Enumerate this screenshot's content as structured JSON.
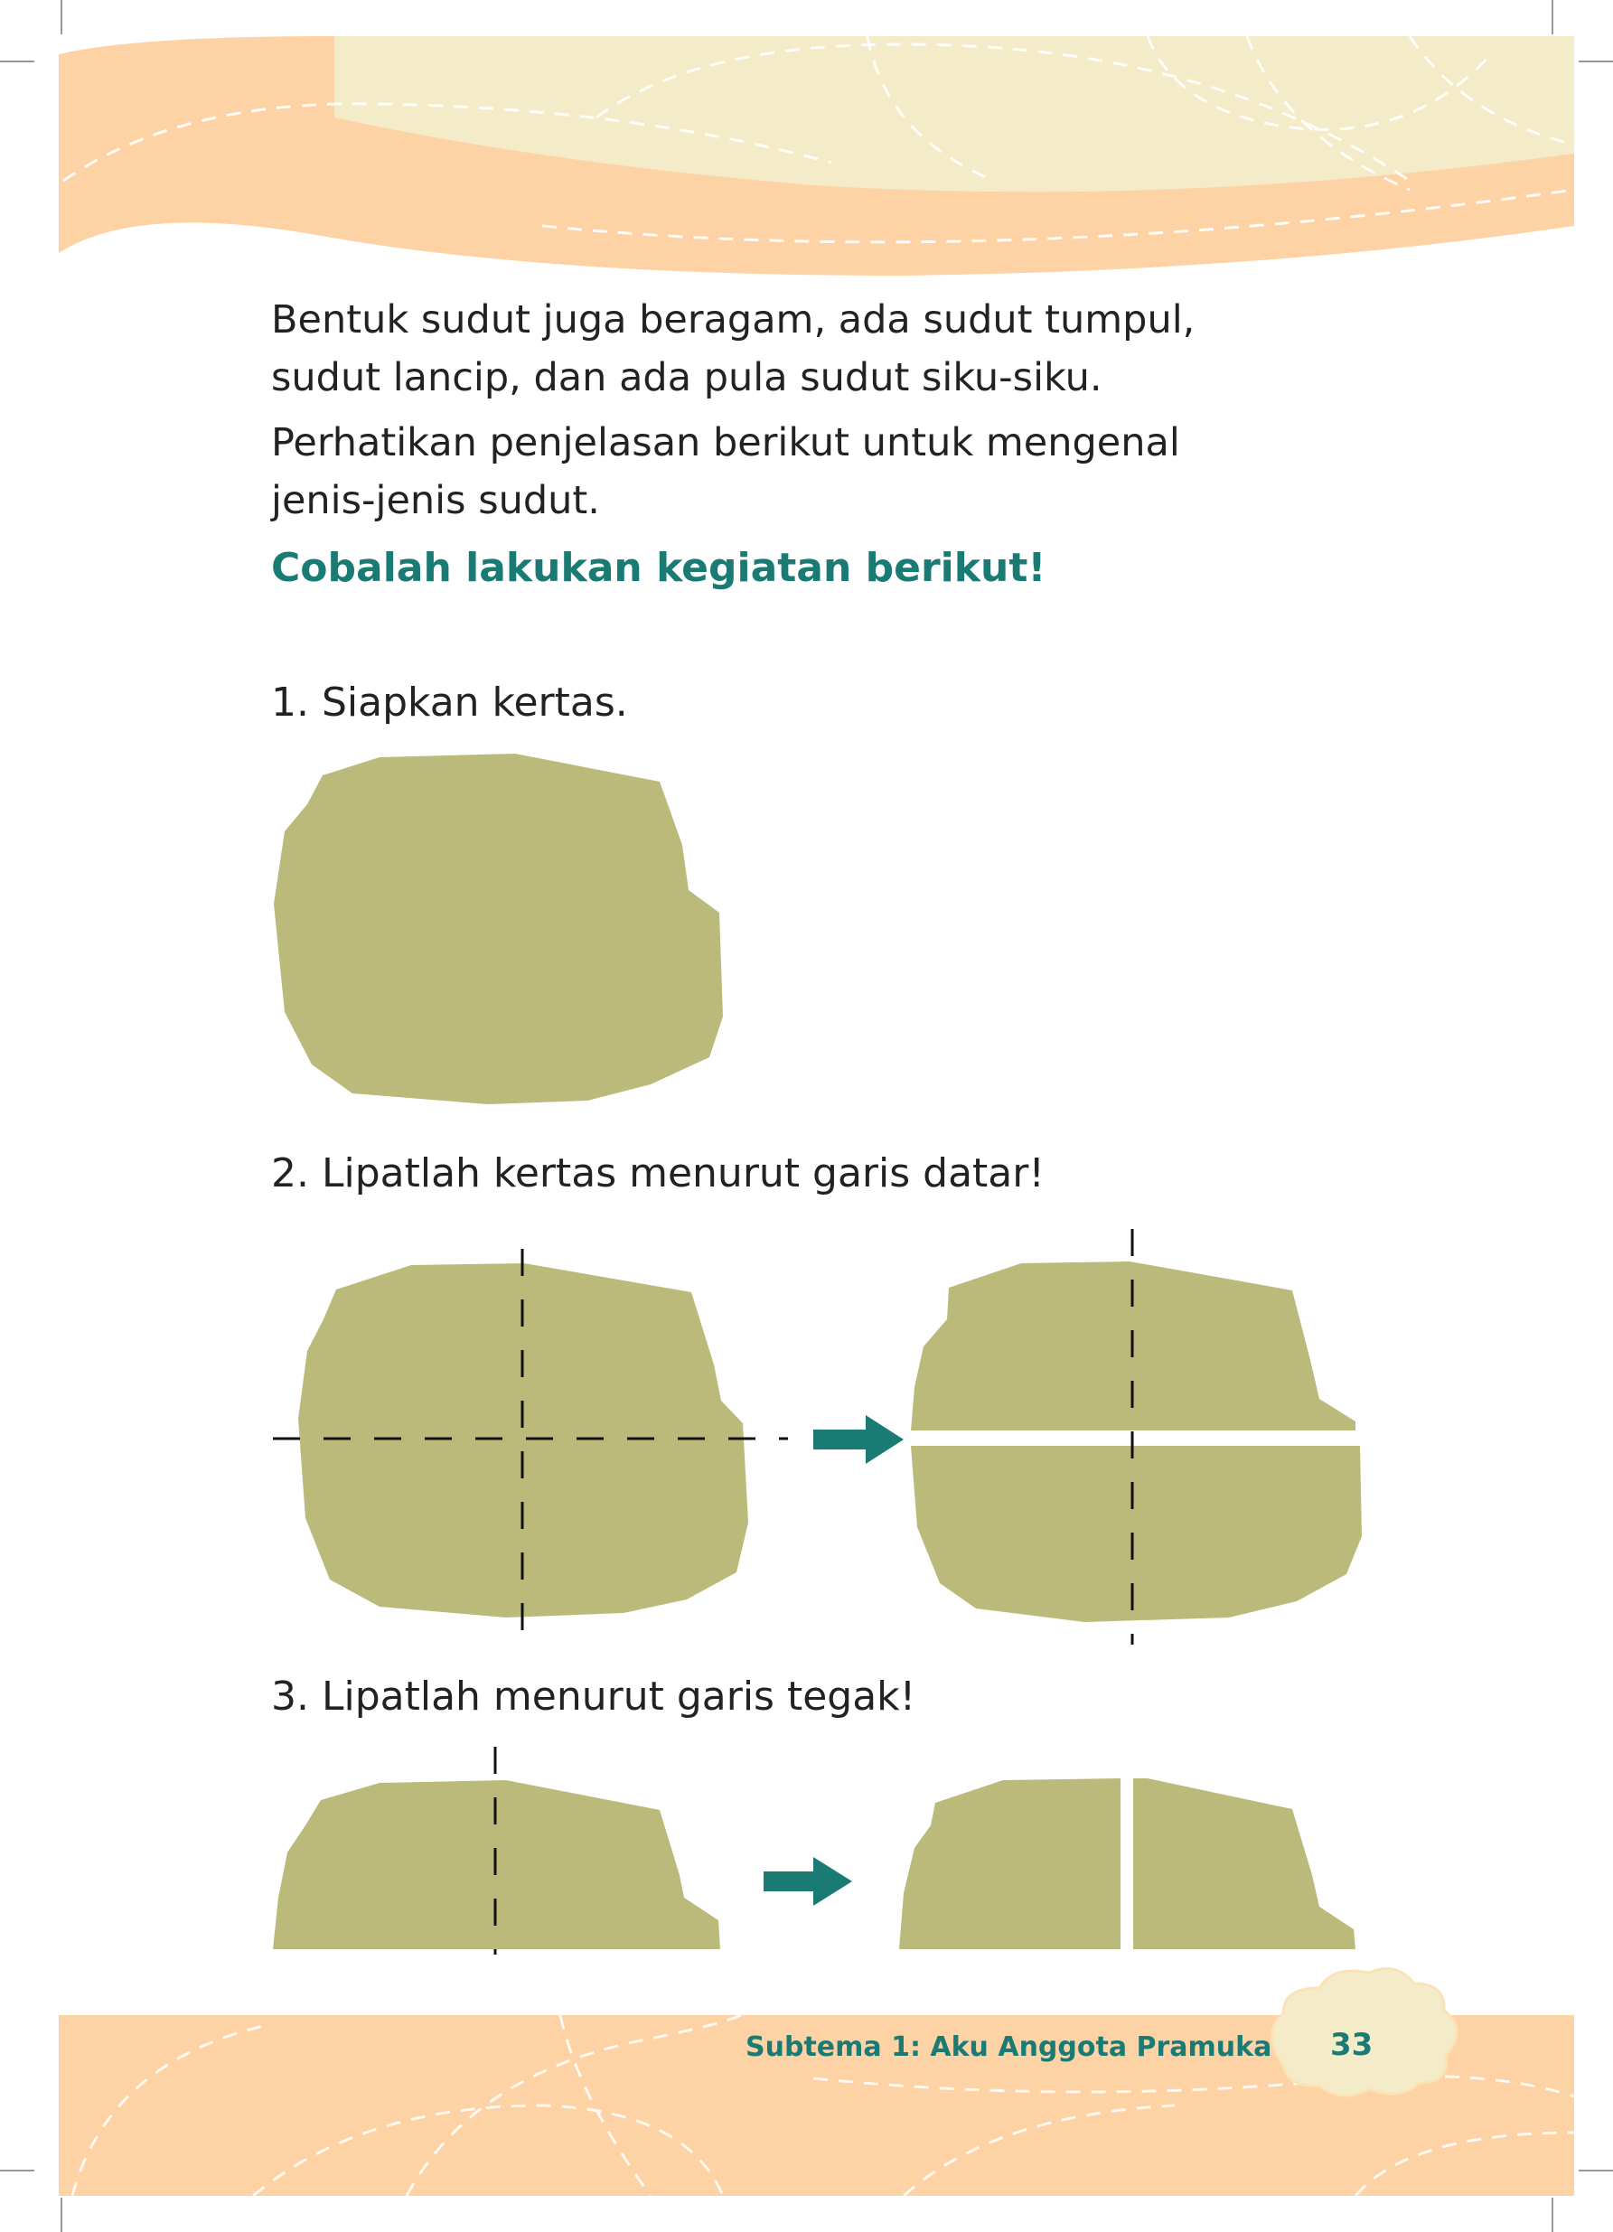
{
  "paragraphs": [
    {
      "line1": "Bentuk sudut juga beragam, ada sudut tumpul,",
      "line2": "sudut lancip, dan ada pula sudut siku-siku."
    },
    {
      "line1": "Perhatikan penjelasan berikut untuk mengenal",
      "line2": "jenis-jenis sudut."
    }
  ],
  "activity_heading": "Cobalah lakukan kegiatan berikut!",
  "steps": [
    "1.  Siapkan kertas.",
    "2. Lipatlah kertas menurut garis datar!",
    "3. Lipatlah menurut garis tegak!"
  ],
  "footer": {
    "subtheme": "Subtema 1: Aku Anggota Pramuka",
    "page_number": "33"
  },
  "colors": {
    "paper": "#bbba7a",
    "accent_green": "#1a7a74",
    "header_peach": "#fdd2a4",
    "header_cream": "#f4ebc8"
  }
}
